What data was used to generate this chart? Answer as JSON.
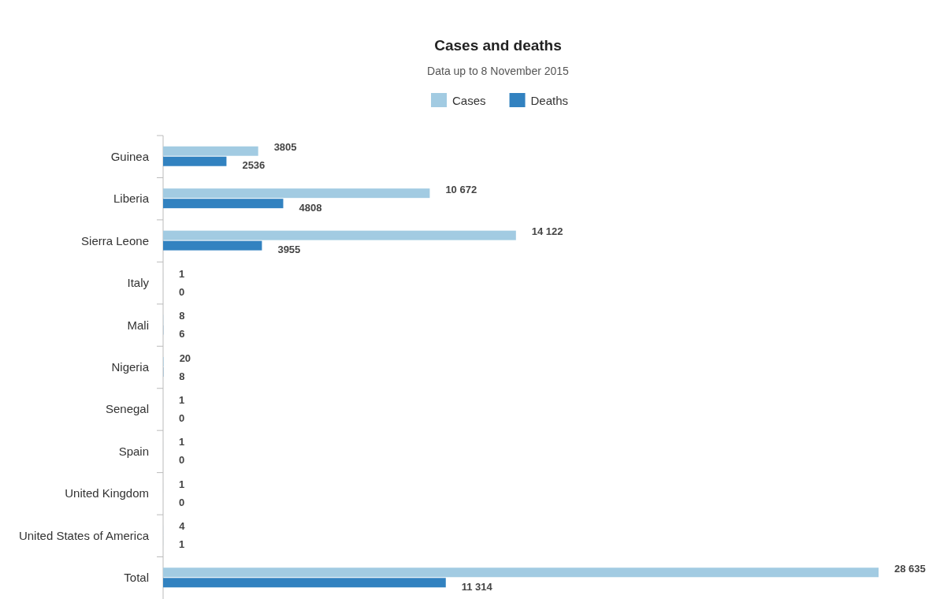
{
  "chart_data": {
    "type": "bar",
    "orientation": "horizontal",
    "title": "Cases and deaths",
    "subtitle": "Data up to 8 November 2015",
    "legend": "top",
    "categories": [
      "Guinea",
      "Liberia",
      "Sierra Leone",
      "Italy",
      "Mali",
      "Nigeria",
      "Senegal",
      "Spain",
      "United Kingdom",
      "United States of America",
      "Total"
    ],
    "series": [
      {
        "name": "Cases",
        "color": "#a2cbe2",
        "values": [
          3805,
          10672,
          14122,
          1,
          8,
          20,
          1,
          1,
          1,
          4,
          28635
        ],
        "value_labels": [
          "3805",
          "10 672",
          "14 122",
          "1",
          "8",
          "20",
          "1",
          "1",
          "1",
          "4",
          "28 635"
        ]
      },
      {
        "name": "Deaths",
        "color": "#3282c0",
        "values": [
          2536,
          4808,
          3955,
          0,
          6,
          8,
          0,
          0,
          0,
          1,
          11314
        ],
        "value_labels": [
          "2536",
          "4808",
          "3955",
          "0",
          "6",
          "8",
          "0",
          "0",
          "0",
          "1",
          "11 314"
        ]
      }
    ]
  }
}
